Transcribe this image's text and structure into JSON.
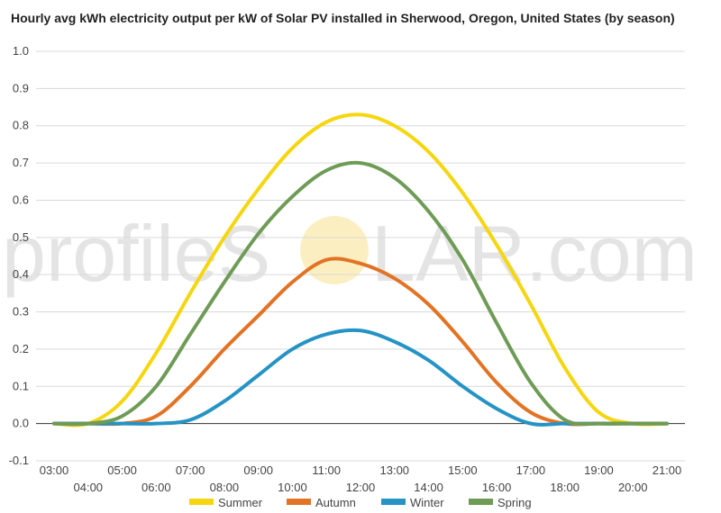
{
  "watermark": {
    "text_left": "profileS",
    "text_right": "LAR.com"
  },
  "chart_data": {
    "type": "line",
    "title": "Hourly avg kWh electricity output per kW of Solar PV installed in Sherwood, Oregon, United States (by season)",
    "xlabel": "",
    "ylabel": "",
    "x": [
      "03:00",
      "04:00",
      "05:00",
      "06:00",
      "07:00",
      "08:00",
      "09:00",
      "10:00",
      "11:00",
      "12:00",
      "13:00",
      "14:00",
      "15:00",
      "16:00",
      "17:00",
      "18:00",
      "19:00",
      "20:00",
      "21:00"
    ],
    "ylim": [
      -0.1,
      1.0
    ],
    "yticks": [
      "-0.1",
      "0.0",
      "0.1",
      "0.2",
      "0.3",
      "0.4",
      "0.5",
      "0.6",
      "0.7",
      "0.8",
      "0.9",
      "1.0"
    ],
    "grid": true,
    "legend": "bottom",
    "series": [
      {
        "name": "Summer",
        "color": "#f5d60f",
        "values": [
          0,
          0,
          0.06,
          0.19,
          0.35,
          0.5,
          0.63,
          0.74,
          0.81,
          0.83,
          0.8,
          0.73,
          0.62,
          0.48,
          0.32,
          0.15,
          0.03,
          0,
          0
        ]
      },
      {
        "name": "Autumn",
        "color": "#e37324",
        "values": [
          0,
          0,
          0,
          0.02,
          0.1,
          0.2,
          0.29,
          0.38,
          0.44,
          0.43,
          0.39,
          0.32,
          0.22,
          0.11,
          0.03,
          0,
          0,
          0,
          0
        ]
      },
      {
        "name": "Winter",
        "color": "#2593c4",
        "values": [
          0,
          0,
          0,
          0,
          0.01,
          0.06,
          0.13,
          0.2,
          0.24,
          0.25,
          0.22,
          0.17,
          0.1,
          0.04,
          0,
          0,
          0,
          0,
          0
        ]
      },
      {
        "name": "Spring",
        "color": "#6e9b55",
        "values": [
          0,
          0,
          0.02,
          0.1,
          0.24,
          0.38,
          0.51,
          0.61,
          0.68,
          0.7,
          0.66,
          0.57,
          0.44,
          0.27,
          0.11,
          0.01,
          0,
          0,
          0
        ]
      }
    ]
  }
}
